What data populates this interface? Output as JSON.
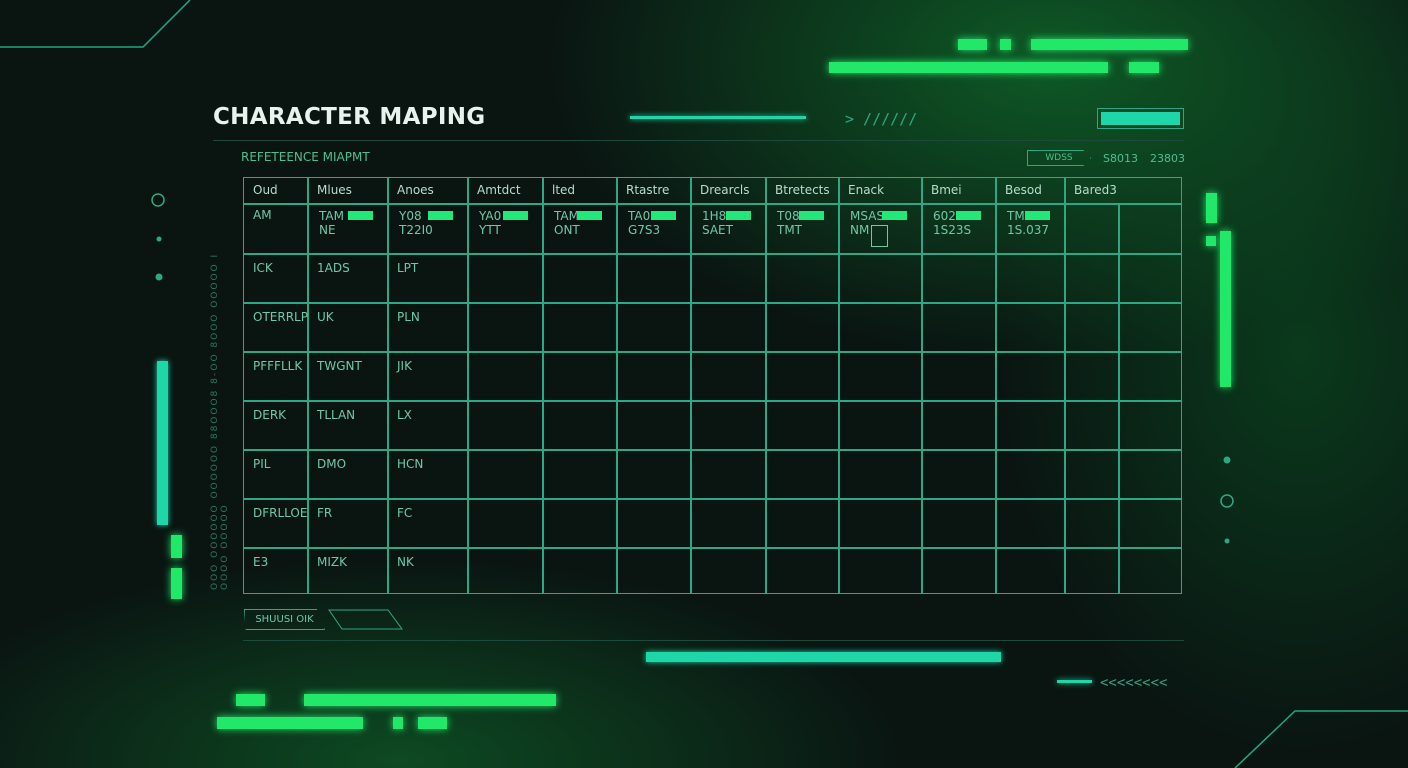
{
  "title": "CHARACTER MAPING",
  "subtitle": "REFETEENCE MIAPMT",
  "badge": "WDSS",
  "stats": [
    "S8013",
    "23803"
  ],
  "side_text": "OOO OOOOOO OOOOOO 88OOO8 8-OO 8OOO OOOOO I OOOO OOOOO",
  "headers": [
    "Oud",
    "Mlues",
    "Anoes",
    "Amtdct",
    "lted",
    "Rtastre",
    "Drearcls",
    "Btretects",
    "Enack",
    "Bmei",
    "Besod",
    "Bared3"
  ],
  "row1": [
    {
      "a": "AM",
      "b": ""
    },
    {
      "a": "TAM",
      "b": "NE"
    },
    {
      "a": "Y08",
      "b": "T22I0"
    },
    {
      "a": "YA0",
      "b": "YTT"
    },
    {
      "a": "TAM",
      "b": "ONT"
    },
    {
      "a": "TA0",
      "b": "G7S3"
    },
    {
      "a": "1H8",
      "b": "SAET"
    },
    {
      "a": "T08",
      "b": "TMT"
    },
    {
      "a": "MSAS",
      "b": "NM"
    },
    {
      "a": "6022",
      "b": "1S23S"
    },
    {
      "a": "TM3",
      "b": "1S.037"
    }
  ],
  "rows": [
    [
      "ICK",
      "1ADS",
      "LPT"
    ],
    [
      "OTERRLP",
      "UK",
      "PLN"
    ],
    [
      "PFFFLLK",
      "TWGNT",
      "JIK"
    ],
    [
      "DERK",
      "TLLAN",
      "LX"
    ],
    [
      "PIL",
      "DMO",
      "HCN"
    ],
    [
      "DFRLLOE",
      "FR",
      "FC"
    ],
    [
      "E3",
      "MIZK",
      "NK"
    ]
  ],
  "footer": {
    "button1": "SHUUSI OIK",
    "button2": ""
  },
  "accent": "#22e86a",
  "teal": "#1fd6a8"
}
